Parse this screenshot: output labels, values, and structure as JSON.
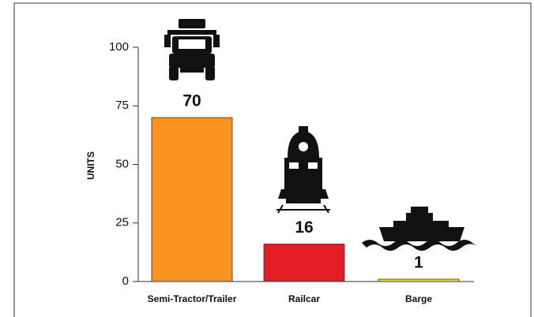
{
  "chart_data": {
    "type": "bar",
    "y_label": "UNITS",
    "categories": [
      "Semi-Tractor/Trailer",
      "Railcar",
      "Barge"
    ],
    "values": [
      70,
      16,
      1
    ],
    "colors": [
      "#f7931e",
      "#e31e24",
      "#ffde17"
    ],
    "ylim": [
      0,
      100
    ],
    "yticks": [
      0,
      25,
      50,
      75,
      100
    ],
    "grid": false
  }
}
